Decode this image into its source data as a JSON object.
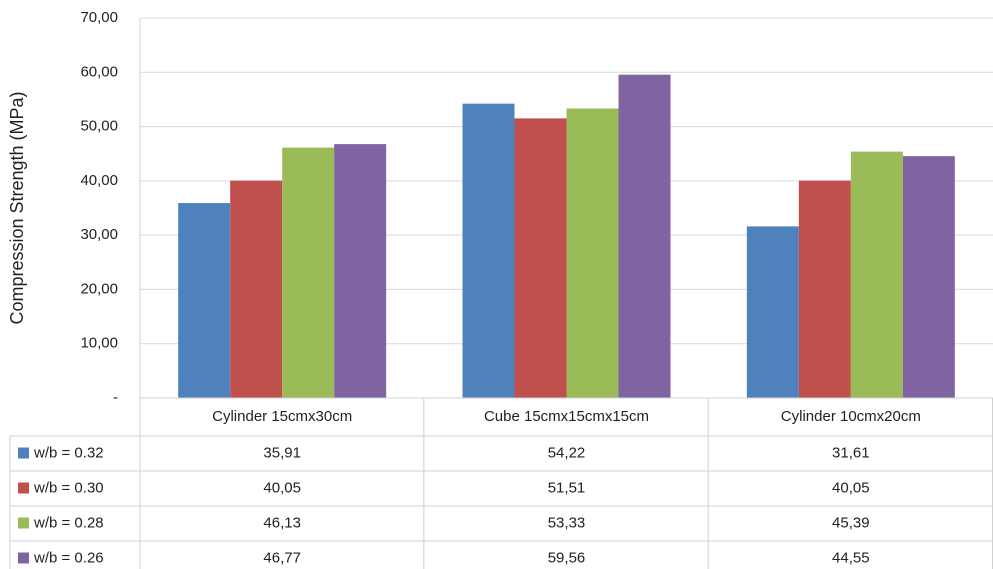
{
  "chart_data": {
    "type": "bar",
    "y_label": "Compression Strength (MPa)",
    "categories": [
      "Cylinder 15cmx30cm",
      "Cube 15cmx15cmx15cm",
      "Cylinder 10cmx20cm"
    ],
    "series": [
      {
        "name": "w/b = 0.32",
        "color": "#4f81bd",
        "values": [
          35.91,
          54.22,
          31.61
        ],
        "value_labels": [
          "35,91",
          "54,22",
          "31,61"
        ]
      },
      {
        "name": "w/b = 0.30",
        "color": "#c0504d",
        "values": [
          40.05,
          51.51,
          40.05
        ],
        "value_labels": [
          "40,05",
          "51,51",
          "40,05"
        ]
      },
      {
        "name": "w/b = 0.28",
        "color": "#9bbb59",
        "values": [
          46.13,
          53.33,
          45.39
        ],
        "value_labels": [
          "46,13",
          "53,33",
          "45,39"
        ]
      },
      {
        "name": "w/b = 0.26",
        "color": "#8064a2",
        "values": [
          46.77,
          59.56,
          44.55
        ],
        "value_labels": [
          "46,77",
          "59,56",
          "44,55"
        ]
      }
    ],
    "ylim": [
      0,
      70
    ],
    "yticks": [
      {
        "value": 0,
        "label": "-"
      },
      {
        "value": 10,
        "label": "10,00"
      },
      {
        "value": 20,
        "label": "20,00"
      },
      {
        "value": 30,
        "label": "30,00"
      },
      {
        "value": 40,
        "label": "40,00"
      },
      {
        "value": 50,
        "label": "50,00"
      },
      {
        "value": 60,
        "label": "60,00"
      },
      {
        "value": 70,
        "label": "70,00"
      }
    ],
    "grid": true
  }
}
